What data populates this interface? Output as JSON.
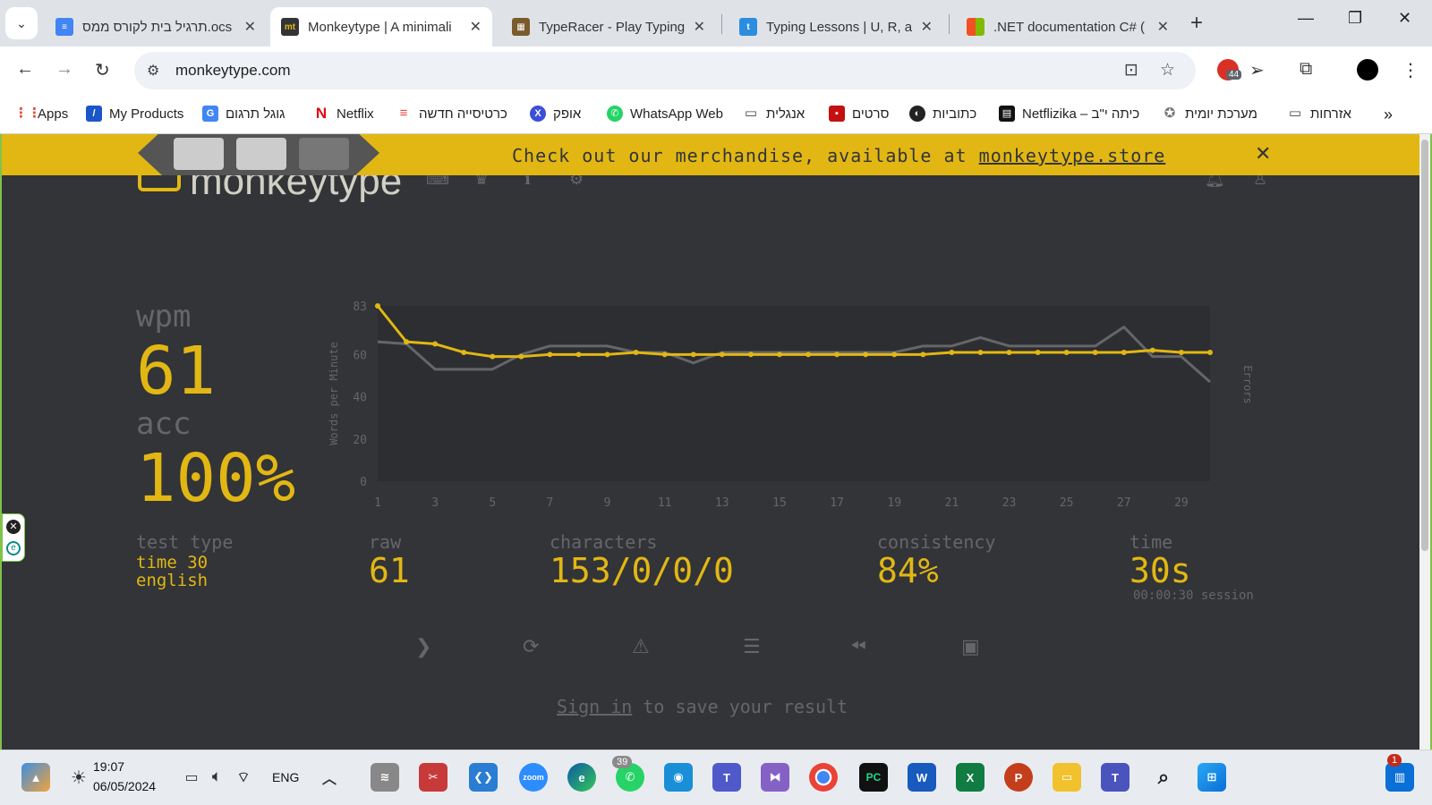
{
  "browser": {
    "tabs": [
      {
        "title": "תרגיל בית לקורס ממס.ocs",
        "favicon_color": "#4285f4"
      },
      {
        "title": "Monkeytype | A minimali",
        "favicon_color": "#323437"
      },
      {
        "title": "TypeRacer - Play Typing G",
        "favicon_color": "#7a5b2c"
      },
      {
        "title": "Typing Lessons | U, R, and",
        "favicon_color": "#2b8de0"
      },
      {
        "title": ".NET documentation C# (",
        "favicon_color": "#f25022"
      }
    ],
    "url": "monkeytype.com",
    "extension_badge": "44",
    "bookmarks": [
      {
        "label": "Apps"
      },
      {
        "label": "My Products"
      },
      {
        "label": "גוגל תרגום"
      },
      {
        "label": "Netflix"
      },
      {
        "label": "כרטיסייה חדשה"
      },
      {
        "label": "אופק"
      },
      {
        "label": "WhatsApp Web"
      },
      {
        "label": "אנגלית"
      },
      {
        "label": "סרטים"
      },
      {
        "label": "כתוביות"
      },
      {
        "label": "Netflizika – כיתה י\"ב"
      },
      {
        "label": "מערכת יומית"
      },
      {
        "label": "אזרחות"
      }
    ]
  },
  "banner": {
    "text": "Check out our merchandise, available at",
    "link": "monkeytype.store",
    "close": "✕"
  },
  "app": {
    "logo": "monkeytype"
  },
  "results": {
    "wpm_label": "wpm",
    "wpm": "61",
    "acc_label": "acc",
    "acc": "100%",
    "test_type_label": "test type",
    "test_type_line1": "time 30",
    "test_type_line2": "english",
    "raw_label": "raw",
    "raw": "61",
    "characters_label": "characters",
    "characters": "153/0/0/0",
    "consistency_label": "consistency",
    "consistency": "84%",
    "time_label": "time",
    "time": "30s",
    "session": "00:00:30 session",
    "signin_link": "Sign in",
    "signin_rest": "to save your result"
  },
  "chart_data": {
    "type": "line",
    "ylabel": "Words per Minute",
    "y2label": "Errors",
    "ylim": [
      0,
      83
    ],
    "yticks": [
      0,
      20,
      40,
      60,
      83
    ],
    "xticks": [
      1,
      3,
      5,
      7,
      9,
      11,
      13,
      15,
      17,
      19,
      21,
      23,
      25,
      27,
      29
    ],
    "x": [
      1,
      2,
      3,
      4,
      5,
      6,
      7,
      8,
      9,
      10,
      11,
      12,
      13,
      14,
      15,
      16,
      17,
      18,
      19,
      20,
      21,
      22,
      23,
      24,
      25,
      26,
      27,
      28,
      29,
      30
    ],
    "series": [
      {
        "name": "wpm",
        "color": "#e2b714",
        "values": [
          83,
          66,
          65,
          61,
          59,
          59,
          60,
          60,
          60,
          61,
          60,
          60,
          60,
          60,
          60,
          60,
          60,
          60,
          60,
          60,
          61,
          61,
          61,
          61,
          61,
          61,
          61,
          62,
          61,
          61
        ]
      },
      {
        "name": "raw",
        "color": "#646669",
        "values": [
          66,
          65,
          53,
          53,
          53,
          60,
          64,
          64,
          64,
          61,
          61,
          56,
          61,
          61,
          61,
          61,
          61,
          61,
          61,
          64,
          64,
          68,
          64,
          64,
          64,
          64,
          73,
          59,
          59,
          47
        ]
      }
    ]
  },
  "taskbar": {
    "time": "19:07",
    "date": "06/05/2024",
    "lang": "ENG",
    "whatsapp_badge": "39",
    "notif_badge": "1"
  }
}
